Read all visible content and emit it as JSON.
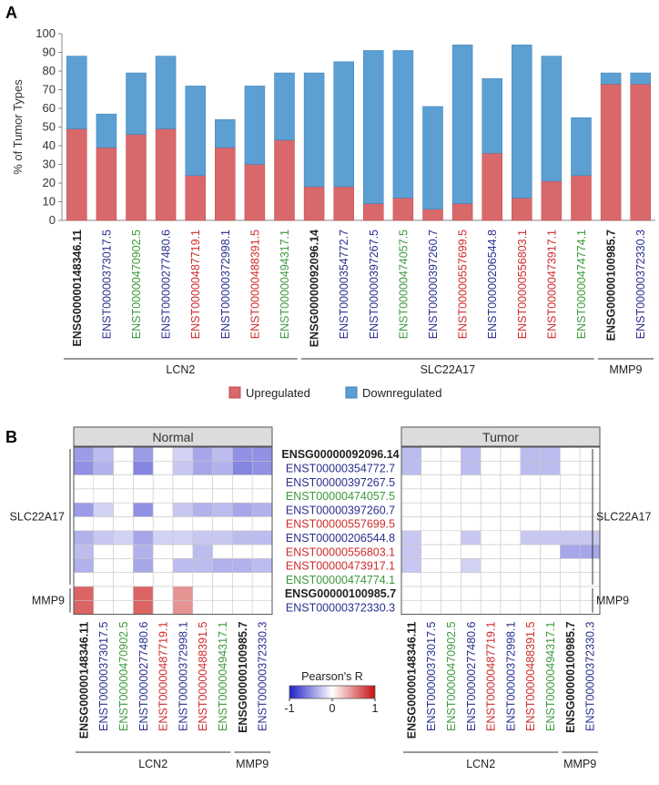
{
  "panel_a": {
    "label": "A"
  },
  "panel_b": {
    "label": "B"
  },
  "colors": {
    "upregulated": "#d9686a",
    "downregulated": "#5b9fd3",
    "gene_label": "#222222",
    "navy": "#2a2f8f",
    "green": "#3c9a3c",
    "red": "#d02a2a",
    "grid": "#b0b0b0",
    "panel_header_bg": "#dcdcdc"
  },
  "chart_data": [
    {
      "type": "bar",
      "stacked": true,
      "title": "",
      "xlabel": "",
      "ylabel": "% of Tumor Types",
      "ylim": [
        0,
        100
      ],
      "yticks": [
        0,
        10,
        20,
        30,
        40,
        50,
        60,
        70,
        80,
        90,
        100
      ],
      "categories": [
        {
          "name": "ENSG00000148346.11",
          "color": "gene_label",
          "bold": true
        },
        {
          "name": "ENST00000373017.5",
          "color": "navy",
          "bold": false
        },
        {
          "name": "ENST00000470902.5",
          "color": "green",
          "bold": false
        },
        {
          "name": "ENST00000277480.6",
          "color": "navy",
          "bold": false
        },
        {
          "name": "ENST00000487719.1",
          "color": "red",
          "bold": false
        },
        {
          "name": "ENST00000372998.1",
          "color": "navy",
          "bold": false
        },
        {
          "name": "ENST00000488391.5",
          "color": "red",
          "bold": false
        },
        {
          "name": "ENST00000494317.1",
          "color": "green",
          "bold": false
        },
        {
          "name": "ENSG00000092096.14",
          "color": "gene_label",
          "bold": true
        },
        {
          "name": "ENST00000354772.7",
          "color": "navy",
          "bold": false
        },
        {
          "name": "ENST00000397267.5",
          "color": "navy",
          "bold": false
        },
        {
          "name": "ENST00000474057.5",
          "color": "green",
          "bold": false
        },
        {
          "name": "ENST00000397260.7",
          "color": "navy",
          "bold": false
        },
        {
          "name": "ENST00000557699.5",
          "color": "red",
          "bold": false
        },
        {
          "name": "ENST00000206544.8",
          "color": "navy",
          "bold": false
        },
        {
          "name": "ENST00000556803.1",
          "color": "red",
          "bold": false
        },
        {
          "name": "ENST00000473917.1",
          "color": "red",
          "bold": false
        },
        {
          "name": "ENST00000474774.1",
          "color": "green",
          "bold": false
        },
        {
          "name": "ENSG00000100985.7",
          "color": "gene_label",
          "bold": true
        },
        {
          "name": "ENST00000372330.3",
          "color": "navy",
          "bold": false
        }
      ],
      "series": [
        {
          "name": "Upregulated",
          "color": "upregulated",
          "values": [
            49,
            39,
            46,
            49,
            24,
            39,
            30,
            43,
            18,
            18,
            9,
            12,
            6,
            9,
            36,
            12,
            21,
            24,
            73,
            73
          ]
        },
        {
          "name": "Downregulated",
          "color": "downregulated",
          "values": [
            39,
            18,
            33,
            39,
            48,
            15,
            42,
            36,
            61,
            67,
            82,
            79,
            55,
            85,
            40,
            82,
            67,
            31,
            6,
            6
          ]
        }
      ],
      "groups": [
        {
          "name": "LCN2",
          "start": 0,
          "end": 7
        },
        {
          "name": "SLC22A17",
          "start": 8,
          "end": 17
        },
        {
          "name": "MMP9",
          "start": 18,
          "end": 19
        }
      ],
      "legend": {
        "position": "bottom",
        "entries": [
          "Upregulated",
          "Downregulated"
        ]
      }
    },
    {
      "type": "heatmap",
      "title": "Normal",
      "colorscale": {
        "label": "Pearson's R",
        "min": -1,
        "max": 1,
        "ticks": [
          "-1",
          "0",
          "1"
        ],
        "low": "#2020c8",
        "mid": "#ffffff",
        "high": "#c81010"
      },
      "rows": [
        {
          "name": "ENSG00000092096.14",
          "color": "gene_label",
          "bold": true
        },
        {
          "name": "ENST00000354772.7",
          "color": "navy",
          "bold": false
        },
        {
          "name": "ENST00000397267.5",
          "color": "navy",
          "bold": false
        },
        {
          "name": "ENST00000474057.5",
          "color": "green",
          "bold": false
        },
        {
          "name": "ENST00000397260.7",
          "color": "navy",
          "bold": false
        },
        {
          "name": "ENST00000557699.5",
          "color": "red",
          "bold": false
        },
        {
          "name": "ENST00000206544.8",
          "color": "navy",
          "bold": false
        },
        {
          "name": "ENST00000556803.1",
          "color": "red",
          "bold": false
        },
        {
          "name": "ENST00000473917.1",
          "color": "red",
          "bold": false
        },
        {
          "name": "ENST00000474774.1",
          "color": "green",
          "bold": false
        },
        {
          "name": "ENSG00000100985.7",
          "color": "gene_label",
          "bold": true
        },
        {
          "name": "ENST00000372330.3",
          "color": "navy",
          "bold": false
        }
      ],
      "columns": [
        {
          "name": "ENSG00000148346.11",
          "color": "gene_label",
          "bold": true
        },
        {
          "name": "ENST00000373017.5",
          "color": "navy",
          "bold": false
        },
        {
          "name": "ENST00000470902.5",
          "color": "green",
          "bold": false
        },
        {
          "name": "ENST00000277480.6",
          "color": "navy",
          "bold": false
        },
        {
          "name": "ENST00000487719.1",
          "color": "red",
          "bold": false
        },
        {
          "name": "ENST00000372998.1",
          "color": "navy",
          "bold": false
        },
        {
          "name": "ENST00000488391.5",
          "color": "red",
          "bold": false
        },
        {
          "name": "ENST00000494317.1",
          "color": "green",
          "bold": false
        },
        {
          "name": "ENSG00000100985.7",
          "color": "gene_label",
          "bold": true
        },
        {
          "name": "ENST00000372330.3",
          "color": "navy",
          "bold": false
        }
      ],
      "values": [
        [
          -0.45,
          -0.3,
          0,
          -0.45,
          0,
          -0.2,
          -0.4,
          -0.3,
          -0.5,
          -0.5
        ],
        [
          -0.5,
          -0.35,
          0,
          -0.55,
          0,
          -0.25,
          -0.4,
          -0.35,
          -0.55,
          -0.5
        ],
        [
          0,
          0,
          0,
          0,
          0,
          0,
          0,
          0,
          0,
          0
        ],
        [
          0,
          0,
          0,
          0,
          0,
          0,
          0,
          0,
          0,
          0
        ],
        [
          -0.45,
          -0.2,
          0,
          -0.5,
          0,
          -0.25,
          -0.35,
          -0.3,
          -0.4,
          -0.35
        ],
        [
          0,
          0,
          0,
          0,
          0,
          0,
          0,
          0,
          0,
          0
        ],
        [
          -0.35,
          -0.25,
          -0.2,
          -0.4,
          -0.2,
          -0.2,
          -0.25,
          -0.25,
          -0.3,
          -0.3
        ],
        [
          -0.3,
          0,
          0,
          -0.35,
          0,
          0,
          -0.3,
          0,
          0,
          0
        ],
        [
          -0.35,
          0,
          0,
          -0.4,
          0,
          -0.3,
          -0.3,
          -0.35,
          -0.35,
          -0.3
        ],
        [
          0,
          0,
          0,
          0,
          0,
          0,
          0,
          0,
          0,
          0
        ],
        [
          0.65,
          0,
          0,
          0.65,
          0,
          0.45,
          0,
          0,
          0,
          0
        ],
        [
          0.65,
          0,
          0,
          0.65,
          0,
          0.45,
          0,
          0,
          0,
          0
        ]
      ],
      "row_groups": [
        {
          "name": "SLC22A17",
          "start": 0,
          "end": 9
        },
        {
          "name": "MMP9",
          "start": 10,
          "end": 11
        }
      ],
      "col_groups": [
        {
          "name": "LCN2",
          "start": 0,
          "end": 7
        },
        {
          "name": "MMP9",
          "start": 8,
          "end": 9
        }
      ]
    },
    {
      "type": "heatmap",
      "title": "Tumor",
      "rows_shared_with": "Normal",
      "values": [
        [
          -0.3,
          0,
          0,
          -0.3,
          0,
          0,
          -0.3,
          -0.3,
          0,
          0
        ],
        [
          -0.3,
          0,
          0,
          -0.3,
          0,
          0,
          -0.3,
          -0.3,
          0,
          0
        ],
        [
          0,
          0,
          0,
          0,
          0,
          0,
          0,
          0,
          0,
          0
        ],
        [
          0,
          0,
          0,
          0,
          0,
          0,
          0,
          0,
          0,
          0
        ],
        [
          0,
          0,
          0,
          0,
          0,
          0,
          0,
          0,
          0,
          0
        ],
        [
          0,
          0,
          0,
          0,
          0,
          0,
          0,
          0,
          0,
          0
        ],
        [
          -0.25,
          0,
          0,
          -0.25,
          0,
          0,
          -0.25,
          -0.25,
          -0.25,
          -0.25
        ],
        [
          -0.25,
          0,
          0,
          0,
          0,
          0,
          0,
          0,
          -0.4,
          -0.4
        ],
        [
          -0.25,
          0,
          0,
          -0.2,
          0,
          0,
          0,
          0,
          0,
          0
        ],
        [
          0,
          0,
          0,
          0,
          0,
          0,
          0,
          0,
          0,
          0
        ],
        [
          0,
          0,
          0,
          0,
          0,
          0,
          0,
          0,
          0,
          0
        ],
        [
          0,
          0,
          0,
          0,
          0,
          0,
          0,
          0,
          0,
          0
        ]
      ]
    }
  ]
}
